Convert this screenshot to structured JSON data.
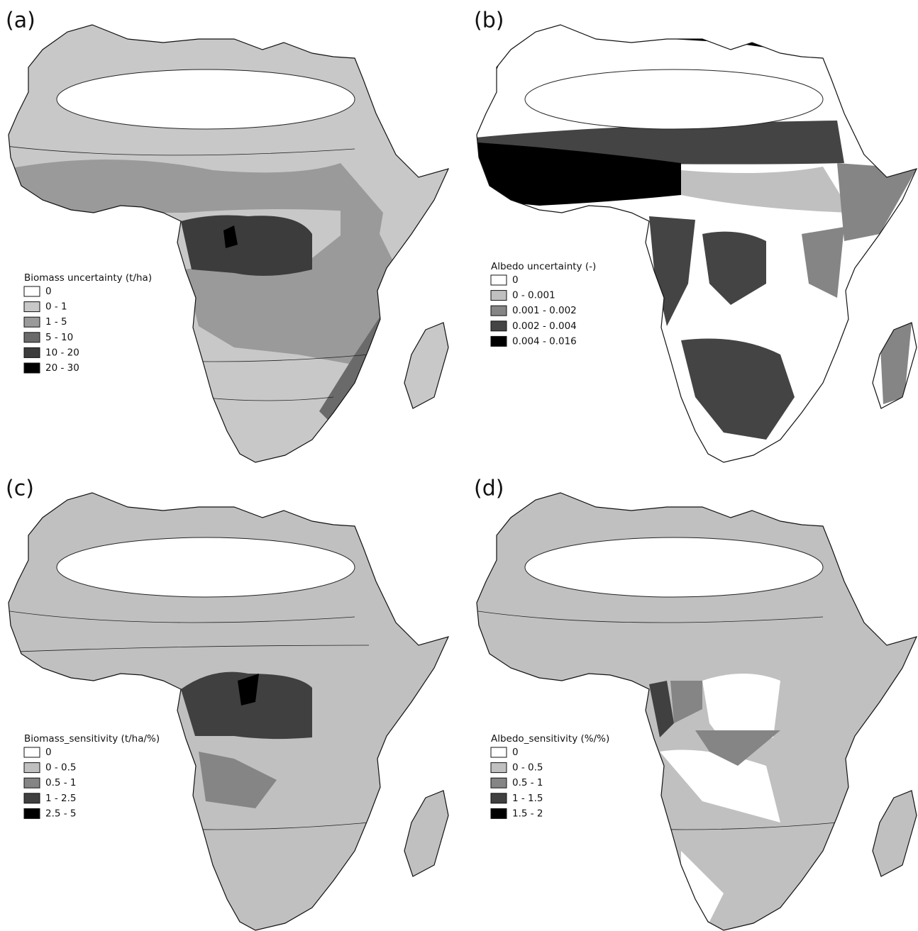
{
  "panels": [
    {
      "label": "(a)",
      "legend": {
        "title": "Biomass uncertainty (t/ha)",
        "items": [
          {
            "label": "0",
            "color": "#ffffff"
          },
          {
            "label": "0 - 1",
            "color": "#c8c8c8"
          },
          {
            "label": "1 - 5",
            "color": "#9a9a9a"
          },
          {
            "label": "5 - 10",
            "color": "#6a6a6a"
          },
          {
            "label": "10 - 20",
            "color": "#3c3c3c"
          },
          {
            "label": "20 - 30",
            "color": "#000000"
          }
        ]
      }
    },
    {
      "label": "(b)",
      "legend": {
        "title": "Albedo uncertainty (-)",
        "items": [
          {
            "label": "0",
            "color": "#ffffff"
          },
          {
            "label": "0 - 0.001",
            "color": "#c0c0c0"
          },
          {
            "label": "0.001 - 0.002",
            "color": "#858585"
          },
          {
            "label": "0.002 - 0.004",
            "color": "#444444"
          },
          {
            "label": "0.004 - 0.016",
            "color": "#000000"
          }
        ]
      }
    },
    {
      "label": "(c)",
      "legend": {
        "title": "Biomass_sensitivity (t/ha/%)",
        "items": [
          {
            "label": "0",
            "color": "#ffffff"
          },
          {
            "label": "0 - 0.5",
            "color": "#c0c0c0"
          },
          {
            "label": "0.5 - 1",
            "color": "#858585"
          },
          {
            "label": "1 - 2.5",
            "color": "#404040"
          },
          {
            "label": "2.5 - 5",
            "color": "#000000"
          }
        ]
      }
    },
    {
      "label": "(d)",
      "legend": {
        "title": "Albedo_sensitivity (%/%)",
        "items": [
          {
            "label": "0",
            "color": "#ffffff"
          },
          {
            "label": "0 - 0.5",
            "color": "#c0c0c0"
          },
          {
            "label": "0.5 - 1",
            "color": "#858585"
          },
          {
            "label": "1 - 1.5",
            "color": "#404040"
          },
          {
            "label": "1.5 - 2",
            "color": "#000000"
          }
        ]
      }
    }
  ]
}
